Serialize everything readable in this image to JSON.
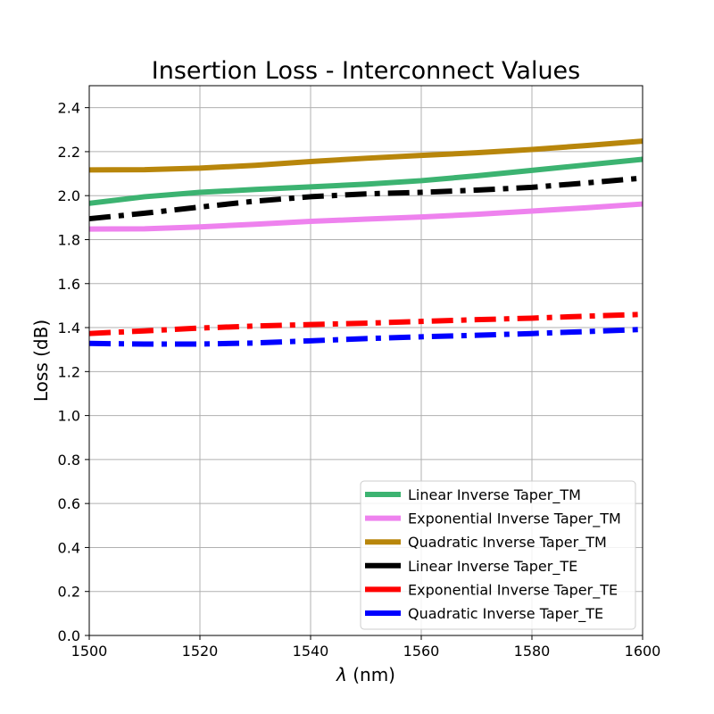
{
  "chart_data": {
    "type": "line",
    "title": "Insertion Loss - Interconnect Values",
    "xlabel_symbol": "λ",
    "xlabel_unit": " (nm)",
    "ylabel": "Loss (dB)",
    "xlim": [
      1500,
      1600
    ],
    "ylim": [
      0.0,
      2.5
    ],
    "xticks": [
      1500,
      1520,
      1540,
      1560,
      1580,
      1600
    ],
    "yticks": [
      0.0,
      0.2,
      0.4,
      0.6,
      0.8,
      1.0,
      1.2,
      1.4,
      1.6,
      1.8,
      2.0,
      2.2,
      2.4
    ],
    "grid": true,
    "legend_position": "lower-right",
    "x": [
      1500,
      1510,
      1520,
      1530,
      1540,
      1550,
      1560,
      1570,
      1580,
      1590,
      1600
    ],
    "series": [
      {
        "name": "Linear Inverse Taper_TM",
        "color": "#3cb371",
        "style": "solid",
        "values": [
          1.965,
          1.995,
          2.015,
          2.028,
          2.04,
          2.052,
          2.068,
          2.09,
          2.115,
          2.14,
          2.165
        ]
      },
      {
        "name": "Exponential Inverse Taper_TM",
        "color": "#ee82ee",
        "style": "solid",
        "values": [
          1.848,
          1.849,
          1.858,
          1.87,
          1.883,
          1.893,
          1.903,
          1.915,
          1.93,
          1.945,
          1.962
        ]
      },
      {
        "name": "Quadratic Inverse Taper_TM",
        "color": "#b8860b",
        "style": "solid",
        "values": [
          2.117,
          2.118,
          2.125,
          2.138,
          2.155,
          2.17,
          2.183,
          2.195,
          2.21,
          2.228,
          2.248
        ]
      },
      {
        "name": "Linear Inverse Taper_TE",
        "color": "#000000",
        "style": "dashdot",
        "values": [
          1.895,
          1.92,
          1.948,
          1.975,
          1.995,
          2.008,
          2.015,
          2.025,
          2.038,
          2.058,
          2.08
        ]
      },
      {
        "name": "Exponential Inverse Taper_TE",
        "color": "#ff0000",
        "style": "dashdot",
        "values": [
          1.373,
          1.385,
          1.398,
          1.407,
          1.414,
          1.42,
          1.428,
          1.436,
          1.443,
          1.452,
          1.46
        ]
      },
      {
        "name": "Quadratic Inverse Taper_TE",
        "color": "#0000ff",
        "style": "dashdot",
        "values": [
          1.328,
          1.325,
          1.325,
          1.33,
          1.34,
          1.35,
          1.358,
          1.365,
          1.373,
          1.382,
          1.392
        ]
      }
    ]
  }
}
